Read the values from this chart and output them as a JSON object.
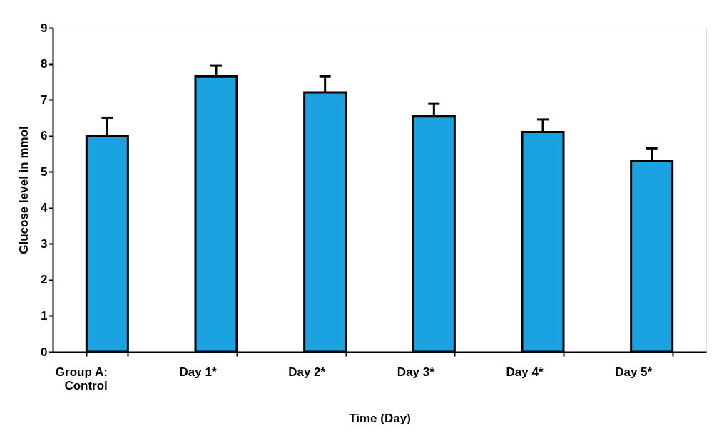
{
  "chart_data": {
    "type": "bar",
    "xlabel": "Time (Day)",
    "ylabel": "Glucose level in mmol",
    "categories": [
      "Group A: Control",
      "Day 1*",
      "Day 2*",
      "Day 3*",
      "Day 4*",
      "Day 5*"
    ],
    "values": [
      6.0,
      7.65,
      7.2,
      6.55,
      6.1,
      5.3
    ],
    "errors": [
      [
        6.0,
        6.5
      ],
      [
        7.65,
        7.95
      ],
      [
        7.2,
        7.65
      ],
      [
        6.55,
        6.9
      ],
      [
        6.1,
        6.45
      ],
      [
        5.3,
        5.65
      ]
    ],
    "color": "#1aa3e0",
    "ylim": [
      0,
      9
    ],
    "yticks": [
      0,
      1,
      2,
      3,
      4,
      5,
      6,
      7,
      8,
      9
    ],
    "grid": false
  }
}
